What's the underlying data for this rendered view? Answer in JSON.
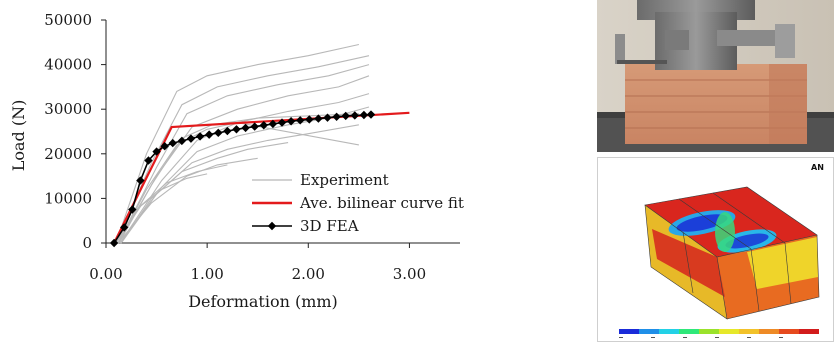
{
  "chart_data": {
    "type": "line",
    "xlabel": "Deformation (mm)",
    "ylabel": "Load (N)",
    "xlim": [
      0,
      3.5
    ],
    "ylim": [
      0,
      50000
    ],
    "xticks": [
      "0.00",
      "1.00",
      "2.00",
      "3.00"
    ],
    "yticks": [
      "0",
      "10000",
      "20000",
      "30000",
      "40000",
      "50000"
    ],
    "grid": false,
    "legend_position": "lower-right",
    "legend": [
      "Experiment",
      "Ave. bilinear curve fit",
      "3D FEA"
    ],
    "series": [
      {
        "name": "Ave. bilinear curve fit",
        "color": "#e31a1c",
        "x": [
          0.08,
          0.65,
          3.0
        ],
        "y": [
          0,
          26000,
          29200
        ]
      },
      {
        "name": "3D FEA",
        "color": "#000000",
        "marker": "diamond",
        "x": [
          0.08,
          0.18,
          0.26,
          0.34,
          0.42,
          0.5,
          0.58,
          0.66,
          0.75,
          0.84,
          0.93,
          1.02,
          1.11,
          1.2,
          1.29,
          1.38,
          1.47,
          1.56,
          1.65,
          1.74,
          1.83,
          1.92,
          2.01,
          2.1,
          2.19,
          2.28,
          2.37,
          2.46,
          2.55,
          2.62
        ],
        "y": [
          0,
          3500,
          7500,
          14000,
          18500,
          20500,
          21700,
          22400,
          22900,
          23400,
          23900,
          24300,
          24700,
          25100,
          25500,
          25800,
          26100,
          26400,
          26700,
          27000,
          27300,
          27500,
          27700,
          27900,
          28100,
          28300,
          28500,
          28600,
          28700,
          28800
        ]
      },
      {
        "name": "Experiment",
        "color": "#b8b8b8",
        "curves": [
          {
            "x": [
              0.1,
              0.4,
              0.7,
              1.0,
              1.5,
              2.0,
              2.5
            ],
            "y": [
              0,
              20000,
              34000,
              37500,
              40000,
              42000,
              44500
            ]
          },
          {
            "x": [
              0.1,
              0.45,
              0.75,
              1.1,
              1.6,
              2.1,
              2.6
            ],
            "y": [
              0,
              18000,
              31000,
              35000,
              37500,
              39500,
              42000
            ]
          },
          {
            "x": [
              0.12,
              0.5,
              0.8,
              1.2,
              1.7,
              2.2,
              2.6
            ],
            "y": [
              0,
              17000,
              29000,
              33000,
              35500,
              37500,
              40000
            ]
          },
          {
            "x": [
              0.12,
              0.5,
              0.85,
              1.3,
              1.8,
              2.3,
              2.6
            ],
            "y": [
              0,
              15000,
              26000,
              30000,
              33000,
              35000,
              37500
            ]
          },
          {
            "x": [
              0.14,
              0.55,
              0.9,
              1.3,
              1.8,
              2.3,
              2.6
            ],
            "y": [
              0,
              14000,
              23000,
              27000,
              29500,
              31500,
              33500
            ]
          },
          {
            "x": [
              0.14,
              0.55,
              0.9,
              1.3,
              1.8,
              2.2,
              2.6
            ],
            "y": [
              0,
              12500,
              20500,
              24000,
              26500,
              28000,
              30500
            ]
          },
          {
            "x": [
              0.15,
              0.5,
              0.85,
              1.2,
              1.6,
              2.0,
              2.5
            ],
            "y": [
              0,
              11000,
              18000,
              21000,
              23000,
              24500,
              26500
            ]
          },
          {
            "x": [
              0.15,
              0.45,
              0.75,
              1.1,
              1.4,
              1.8
            ],
            "y": [
              0,
              10000,
              16000,
              19000,
              21000,
              22500
            ]
          },
          {
            "x": [
              0.12,
              0.45,
              0.8,
              1.1,
              1.5
            ],
            "y": [
              0,
              9000,
              15000,
              17500,
              19000
            ]
          },
          {
            "x": [
              0.1,
              0.35,
              0.6,
              0.9,
              1.2
            ],
            "y": [
              0,
              8500,
              13500,
              16000,
              17500
            ]
          },
          {
            "x": [
              0.1,
              0.3,
              0.55,
              0.8,
              1.0
            ],
            "y": [
              0,
              7500,
              12000,
              14500,
              15500
            ]
          },
          {
            "x": [
              0.12,
              0.4,
              0.7,
              1.0,
              1.3,
              2.5
            ],
            "y": [
              0,
              12000,
              22000,
              25500,
              27000,
              22000
            ]
          },
          {
            "x": [
              0.13,
              0.45,
              0.75,
              1.05,
              1.5,
              2.5
            ],
            "y": [
              0,
              13000,
              23500,
              26500,
              28000,
              29000
            ]
          }
        ]
      }
    ]
  },
  "fea_panel": {
    "logo": "AN",
    "colorbar_colors": [
      "#1a2bd9",
      "#1f8fe8",
      "#23d1e6",
      "#2fe87a",
      "#9be22b",
      "#e6e82a",
      "#f2c22a",
      "#ee8a26",
      "#e64a1e",
      "#d21c1c"
    ]
  }
}
